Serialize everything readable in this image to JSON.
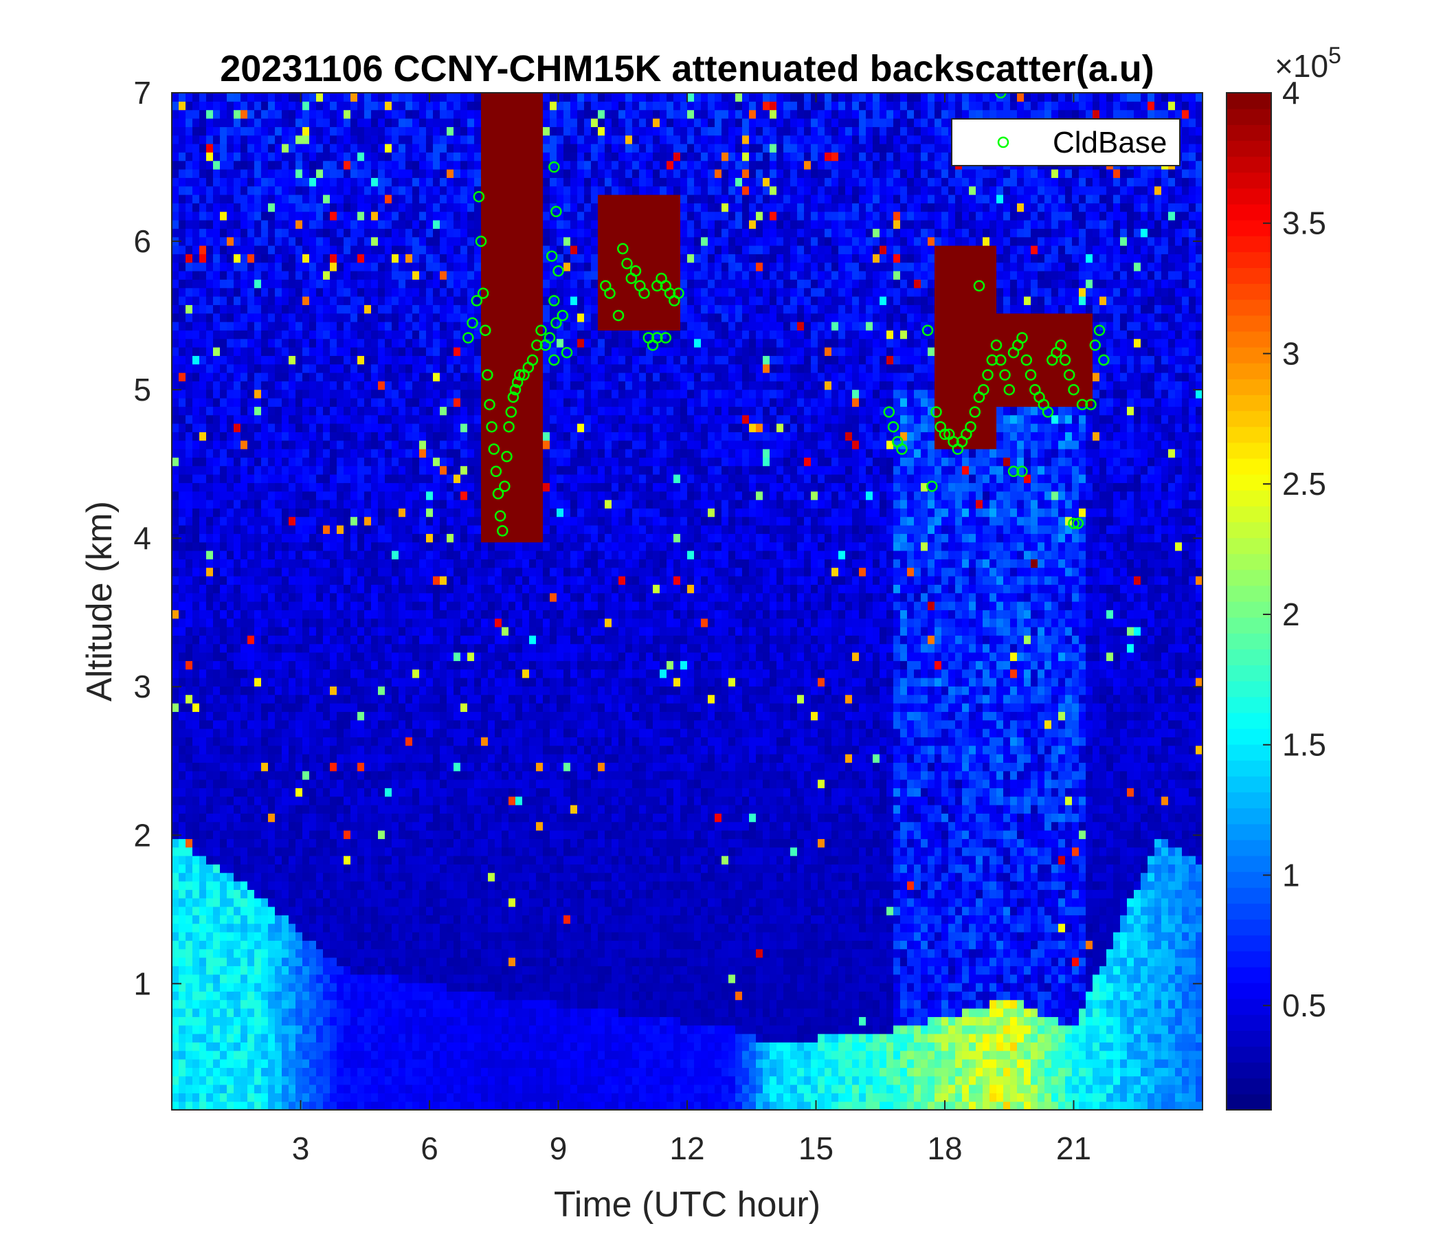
{
  "chart_data": {
    "type": "heatmap",
    "title": "20231106 CCNY-CHM15K attenuated backscatter(a.u)",
    "xlabel": "Time (UTC hour)",
    "ylabel": "Altitude (km)",
    "xlim": [
      0,
      24
    ],
    "ylim": [
      0.15,
      7
    ],
    "xticks": [
      3,
      6,
      9,
      12,
      15,
      18,
      21
    ],
    "xtick_labels": [
      "3",
      "6",
      "9",
      "12",
      "15",
      "18",
      "21"
    ],
    "yticks": [
      1,
      2,
      3,
      4,
      5,
      6,
      7
    ],
    "ytick_labels": [
      "1",
      "2",
      "3",
      "4",
      "5",
      "6",
      "7"
    ],
    "colorbar": {
      "colormap": "jet",
      "range": [
        0.1,
        4
      ],
      "ticks": [
        0.5,
        1,
        1.5,
        2,
        2.5,
        3,
        3.5,
        4
      ],
      "tick_labels": [
        "0.5",
        "1",
        "1.5",
        "2",
        "2.5",
        "3",
        "3.5",
        "4"
      ],
      "exponent_label": "×10",
      "exponent_power": "5"
    },
    "legend": {
      "position": "top-right",
      "entries": [
        "CldBase"
      ],
      "marker_color": "#00ff00"
    },
    "cloud_regions": [
      {
        "time_start": 7.2,
        "time_end": 8.6,
        "alt_base": 4.0,
        "alt_top": 7.0
      },
      {
        "time_start": 10.0,
        "time_end": 11.8,
        "alt_base": 5.4,
        "alt_top": 6.3
      },
      {
        "time_start": 17.8,
        "time_end": 19.2,
        "alt_base": 4.6,
        "alt_top": 6.0
      },
      {
        "time_start": 19.2,
        "time_end": 21.5,
        "alt_base": 4.9,
        "alt_top": 5.5
      }
    ],
    "boundary_layer": [
      {
        "time": 0,
        "top": 2.0,
        "value": 1.5
      },
      {
        "time": 2,
        "top": 1.6,
        "value": 1.5
      },
      {
        "time": 4,
        "top": 1.1,
        "value": 0.6
      },
      {
        "time": 8,
        "top": 0.9,
        "value": 0.5
      },
      {
        "time": 13,
        "top": 0.7,
        "value": 0.6
      },
      {
        "time": 14,
        "top": 0.6,
        "value": 1.4
      },
      {
        "time": 17,
        "top": 0.7,
        "value": 1.8
      },
      {
        "time": 19.5,
        "top": 0.9,
        "value": 2.4
      },
      {
        "time": 21,
        "top": 0.7,
        "value": 1.6
      },
      {
        "time": 23,
        "top": 2.0,
        "value": 1.2
      },
      {
        "time": 24,
        "top": 1.8,
        "value": 1.0
      }
    ],
    "series": [
      {
        "name": "CldBase",
        "x": [
          6.9,
          7.0,
          7.1,
          7.15,
          7.2,
          7.25,
          7.3,
          7.35,
          7.4,
          7.45,
          7.5,
          7.55,
          7.6,
          7.65,
          7.7,
          7.75,
          7.8,
          7.85,
          7.9,
          7.95,
          8.0,
          8.05,
          8.1,
          8.2,
          8.3,
          8.4,
          8.5,
          8.6,
          8.7,
          8.8,
          8.9,
          8.95,
          9.0,
          9.1,
          9.2,
          8.9,
          8.95,
          8.85,
          8.9,
          10.1,
          10.2,
          10.4,
          10.5,
          10.6,
          10.7,
          10.8,
          10.9,
          11.0,
          11.1,
          11.2,
          11.3,
          11.4,
          11.5,
          11.6,
          11.7,
          11.8,
          11.3,
          11.5,
          16.7,
          16.8,
          16.9,
          17.0,
          17.6,
          17.8,
          17.9,
          18.0,
          18.1,
          18.2,
          18.3,
          18.4,
          18.5,
          18.6,
          18.7,
          18.8,
          18.9,
          19.0,
          19.1,
          19.2,
          19.3,
          19.4,
          19.5,
          19.6,
          19.7,
          19.8,
          19.9,
          20.0,
          20.1,
          20.2,
          20.3,
          20.4,
          20.5,
          20.6,
          20.7,
          20.8,
          20.9,
          21.0,
          21.2,
          21.4,
          21.5,
          21.6,
          21.7,
          19.6,
          19.3,
          18.8,
          17.7,
          19.8,
          21.0,
          21.1
        ],
        "y": [
          5.35,
          5.45,
          5.6,
          6.3,
          6.0,
          5.65,
          5.4,
          5.1,
          4.9,
          4.75,
          4.6,
          4.45,
          4.3,
          4.15,
          4.05,
          4.35,
          4.55,
          4.75,
          4.85,
          4.95,
          5.0,
          5.05,
          5.1,
          5.1,
          5.15,
          5.2,
          5.3,
          5.4,
          5.3,
          5.35,
          5.2,
          5.45,
          5.8,
          5.5,
          5.25,
          6.5,
          6.2,
          5.9,
          5.6,
          5.7,
          5.65,
          5.5,
          5.95,
          5.85,
          5.75,
          5.8,
          5.7,
          5.65,
          5.35,
          5.3,
          5.7,
          5.75,
          5.7,
          5.65,
          5.6,
          5.65,
          5.35,
          5.35,
          4.85,
          4.75,
          4.65,
          4.6,
          5.4,
          4.85,
          4.75,
          4.7,
          4.7,
          4.65,
          4.6,
          4.65,
          4.7,
          4.75,
          4.85,
          4.95,
          5.0,
          5.1,
          5.2,
          5.3,
          5.2,
          5.1,
          5.0,
          5.25,
          5.3,
          5.35,
          5.2,
          5.1,
          5.0,
          4.95,
          4.9,
          4.85,
          5.2,
          5.25,
          5.3,
          5.2,
          5.1,
          5.0,
          4.9,
          4.9,
          5.3,
          5.4,
          5.2,
          4.45,
          7.0,
          5.7,
          4.35,
          4.45,
          4.1,
          4.1
        ]
      }
    ]
  }
}
